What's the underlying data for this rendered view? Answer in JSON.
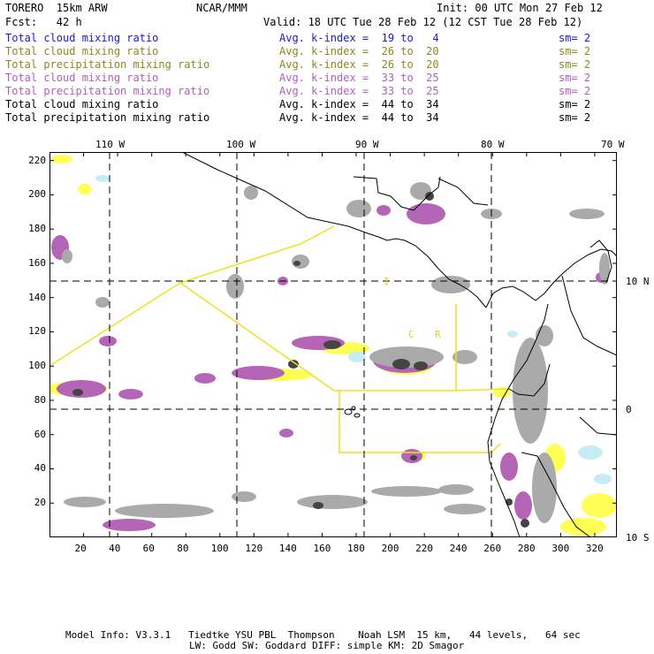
{
  "header": {
    "model": "TORERO  15km ARW",
    "org": "NCAR/MMM",
    "init": "Init: 00 UTC Mon 27 Feb 12",
    "fcst": "Fcst:   42 h",
    "valid": "Valid: 18 UTC Tue 28 Feb 12 (12 CST Tue 28 Feb 12)"
  },
  "legend": [
    {
      "name": "Total cloud mixing ratio",
      "index": "Avg. k-index =  19 to   4",
      "sm": "sm= 2",
      "color": "#1a1acc"
    },
    {
      "name": "Total cloud mixing ratio",
      "index": "Avg. k-index =  26 to  20",
      "sm": "sm= 2",
      "color": "#8a8a1a"
    },
    {
      "name": "Total precipitation mixing ratio",
      "index": "Avg. k-index =  26 to  20",
      "sm": "sm= 2",
      "color": "#8a8a1a"
    },
    {
      "name": "Total cloud mixing ratio",
      "index": "Avg. k-index =  33 to  25",
      "sm": "sm= 2",
      "color": "#b060b8"
    },
    {
      "name": "Total precipitation mixing ratio",
      "index": "Avg. k-index =  33 to  25",
      "sm": "sm= 2",
      "color": "#b060b8"
    },
    {
      "name": "Total cloud mixing ratio",
      "index": "Avg. k-index =  44 to  34",
      "sm": "sm= 2",
      "color": "#000000"
    },
    {
      "name": "Total precipitation mixing ratio",
      "index": "Avg. k-index =  44 to  34",
      "sm": "sm= 2",
      "color": "#000000"
    }
  ],
  "axes": {
    "grid_x": [
      20,
      40,
      60,
      80,
      100,
      120,
      140,
      160,
      180,
      200,
      220,
      240,
      260,
      280,
      300,
      320
    ],
    "grid_y": [
      20,
      40,
      60,
      80,
      100,
      120,
      140,
      160,
      180,
      200,
      220
    ],
    "x_range": [
      0,
      333
    ],
    "y_range": [
      0,
      225
    ],
    "lon_labels": [
      "110 W",
      "100 W",
      "90 W",
      "80 W",
      "70 W"
    ],
    "lon_grid_x": [
      37.5,
      113,
      186,
      262,
      333
    ],
    "lat_labels": [
      "10 N",
      "0",
      "10 S"
    ],
    "lat_grid_y": [
      151,
      76,
      0
    ]
  },
  "map_labels": [
    "C",
    "R",
    "I"
  ],
  "colors": {
    "yellow": "#ffff55",
    "light_blue": "#c8ecf5",
    "magenta": "#b565b5",
    "gray": "#aaaaaa",
    "dark_gray": "#555555",
    "black": "#222222",
    "border_yellow": "#f0e020"
  },
  "footer": {
    "line1": "Model Info: V3.3.1   Tiedtke YSU PBL  Thompson    Noah LSM  15 km,   44 levels,   64 sec",
    "line2": "LW: Godd SW: Goddard DIFF: simple KM: 2D Smagor"
  }
}
